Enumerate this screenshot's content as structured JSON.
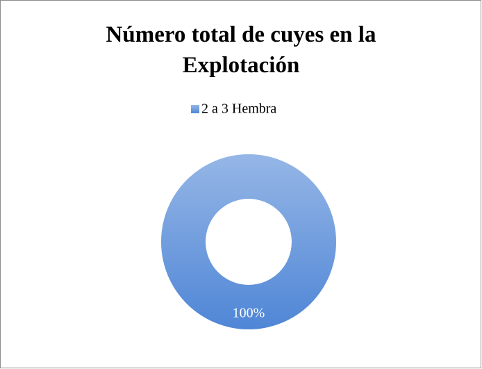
{
  "chart_data": {
    "type": "doughnut",
    "title": "Número total de cuyes en la Explotación",
    "categories": [
      "2 a 3 Hembra"
    ],
    "values": [
      100
    ],
    "value_labels": [
      "100%"
    ],
    "colors": [
      "#4f86d6"
    ],
    "legend": "top"
  }
}
